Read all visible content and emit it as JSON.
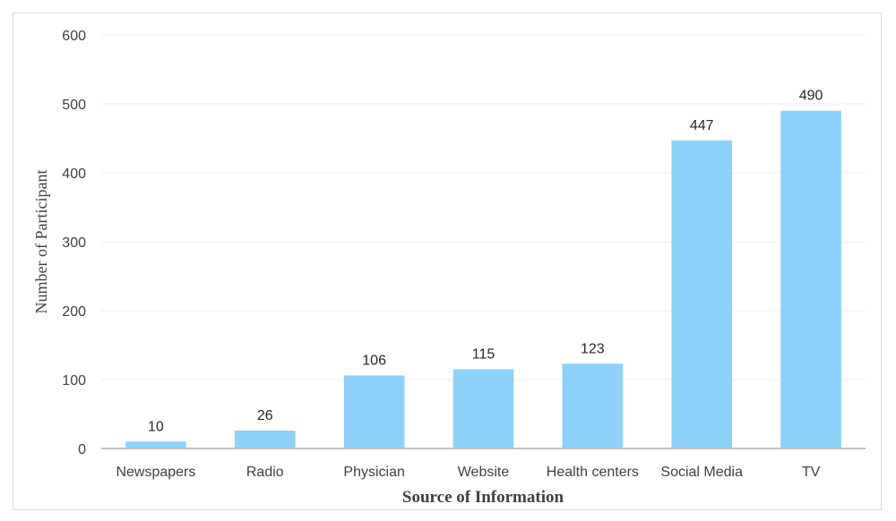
{
  "chart_data": {
    "type": "bar",
    "categories": [
      "Newspapers",
      "Radio",
      "Physician",
      "Website",
      "Health centers",
      "Social Media",
      "TV"
    ],
    "values": [
      10,
      26,
      106,
      115,
      123,
      447,
      490
    ],
    "data_labels": [
      "10",
      "26",
      "106",
      "115",
      "123",
      "447",
      "490"
    ],
    "title": "",
    "xlabel": "Source of Information",
    "ylabel": "Number of Participant",
    "ylim": [
      0,
      600
    ],
    "yticks": [
      0,
      100,
      200,
      300,
      400,
      500,
      600
    ],
    "grid": true,
    "bar_color": "#8ED1F8",
    "legend": "none"
  }
}
